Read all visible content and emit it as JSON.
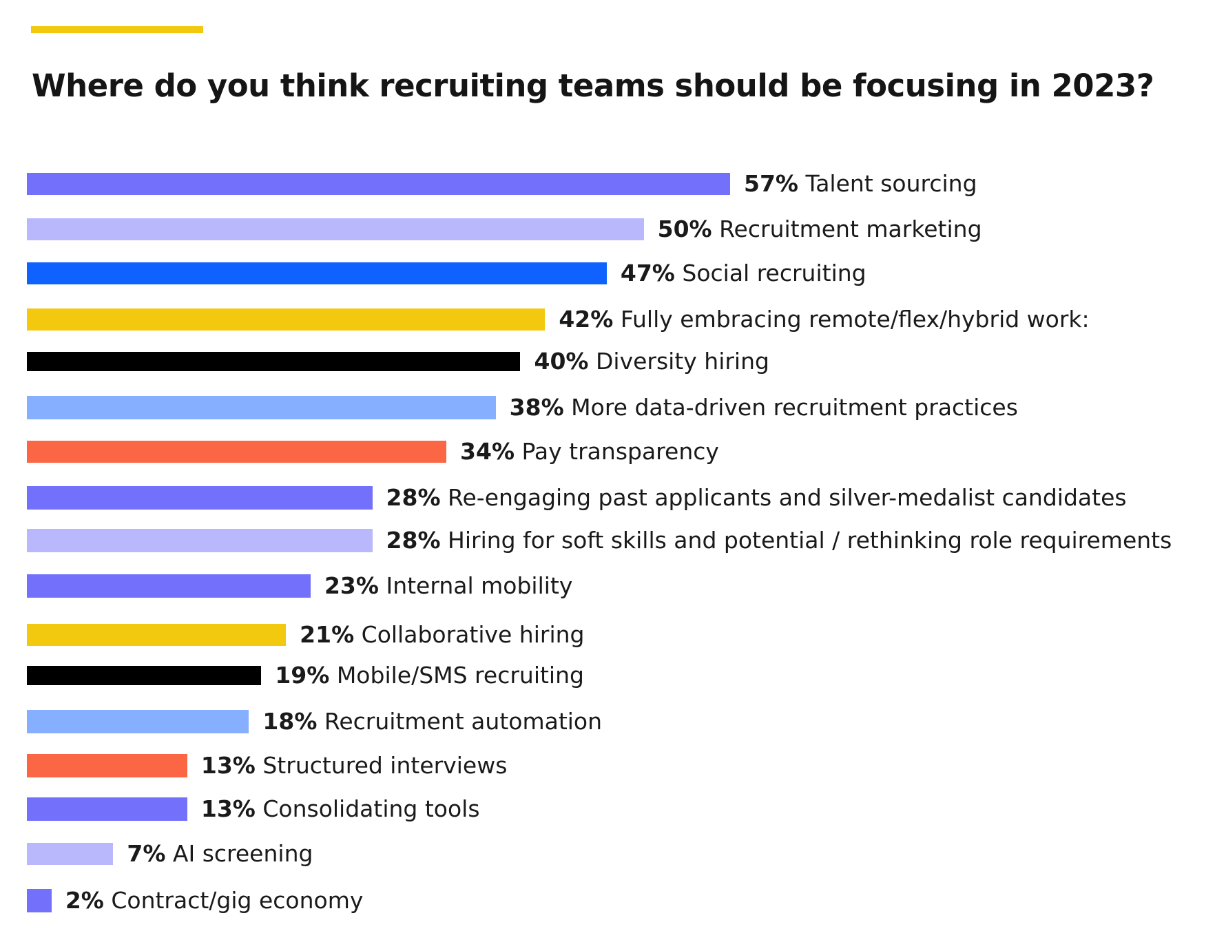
{
  "chart_data": {
    "type": "bar",
    "orientation": "horizontal",
    "title": "Where do you think recruiting teams should be focusing in 2023?",
    "xlabel": "",
    "ylabel": "",
    "xlim": [
      0,
      57
    ],
    "bars": [
      {
        "value": 57,
        "pct_label": "57%",
        "label": "Talent sourcing",
        "color": "#7371fc"
      },
      {
        "value": 50,
        "pct_label": "50%",
        "label": "Recruitment marketing",
        "color": "#b9b8fc"
      },
      {
        "value": 47,
        "pct_label": "47%",
        "label": "Social recruiting",
        "color": "#0f62fe"
      },
      {
        "value": 42,
        "pct_label": "42%",
        "label": "Fully embracing remote/flex/hybrid work:",
        "color": "#f2c90f"
      },
      {
        "value": 40,
        "pct_label": "40%",
        "label": "Diversity hiring",
        "color": "#000000"
      },
      {
        "value": 38,
        "pct_label": "38%",
        "label": "More data-driven recruitment practices",
        "color": "#86b0ff"
      },
      {
        "value": 34,
        "pct_label": "34%",
        "label": "Pay transparency",
        "color": "#fb6645"
      },
      {
        "value": 28,
        "pct_label": "28%",
        "label": "Re-engaging past applicants and silver-medalist candidates",
        "color": "#7371fc"
      },
      {
        "value": 28,
        "pct_label": "28%",
        "label": "Hiring for soft skills and potential / rethinking role requirements",
        "color": "#b9b8fc"
      },
      {
        "value": 23,
        "pct_label": "23%",
        "label": "Internal mobility",
        "color": "#7371fc"
      },
      {
        "value": 21,
        "pct_label": "21%",
        "label": "Collaborative hiring",
        "color": "#f2c90f"
      },
      {
        "value": 19,
        "pct_label": "19%",
        "label": "Mobile/SMS recruiting",
        "color": "#000000"
      },
      {
        "value": 18,
        "pct_label": "18%",
        "label": "Recruitment automation",
        "color": "#86b0ff"
      },
      {
        "value": 13,
        "pct_label": "13%",
        "label": "Structured interviews",
        "color": "#fb6645"
      },
      {
        "value": 13,
        "pct_label": "13%",
        "label": "Consolidating tools",
        "color": "#7371fc"
      },
      {
        "value": 7,
        "pct_label": "7%",
        "label": "AI screening",
        "color": "#b9b8fc"
      },
      {
        "value": 2,
        "pct_label": "2%",
        "label": "Contract/gig economy",
        "color": "#7371fc"
      }
    ],
    "accent_color": "#f2c90f"
  }
}
